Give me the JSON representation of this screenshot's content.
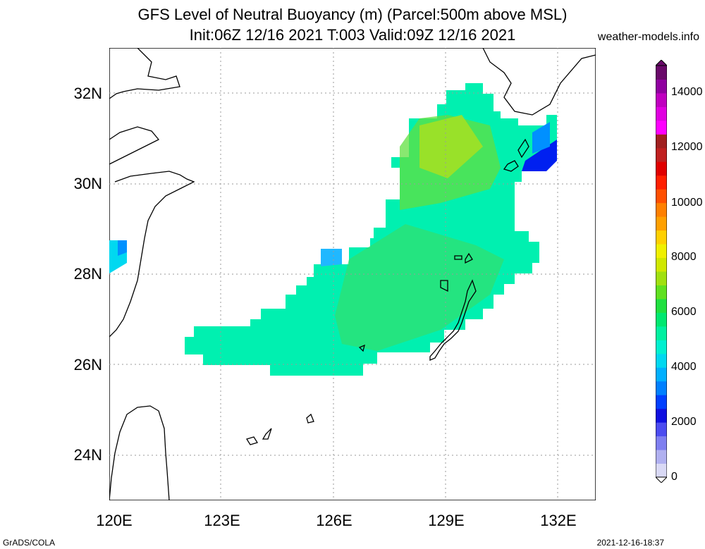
{
  "header": {
    "title_line1": "GFS Level of Neutral Buoyancy (m) (Parcel:500m above MSL)",
    "title_line2": "Init:06Z 12/16 2021 T:003 Valid:09Z 12/16 2021",
    "site": "weather-models.info"
  },
  "axes": {
    "lat_labels": [
      "32N",
      "30N",
      "28N",
      "26N",
      "24N"
    ],
    "lon_labels": [
      "120E",
      "123E",
      "126E",
      "129E",
      "132E"
    ]
  },
  "colorbar": {
    "labels": [
      "14000",
      "12000",
      "10000",
      "8000",
      "6000",
      "4000",
      "2000",
      "0"
    ],
    "colors": [
      "#d9d9f5",
      "#b0b0f0",
      "#7f7ff0",
      "#4c4cf0",
      "#1010e0",
      "#0040ff",
      "#0080ff",
      "#00b0ff",
      "#00d8f0",
      "#00f0d0",
      "#00f0a0",
      "#00e870",
      "#20e040",
      "#60e020",
      "#a0e010",
      "#d0e800",
      "#f0f000",
      "#ffd000",
      "#ffa000",
      "#ff8000",
      "#ff5000",
      "#ff2000",
      "#e00000",
      "#c02020",
      "#a02020",
      "#ff00ff",
      "#e000e0",
      "#c000c0",
      "#9000a0",
      "#6a0a6a"
    ]
  },
  "footer": {
    "left": "GrADS/COLA",
    "right": "2021-12-16-18:37"
  }
}
